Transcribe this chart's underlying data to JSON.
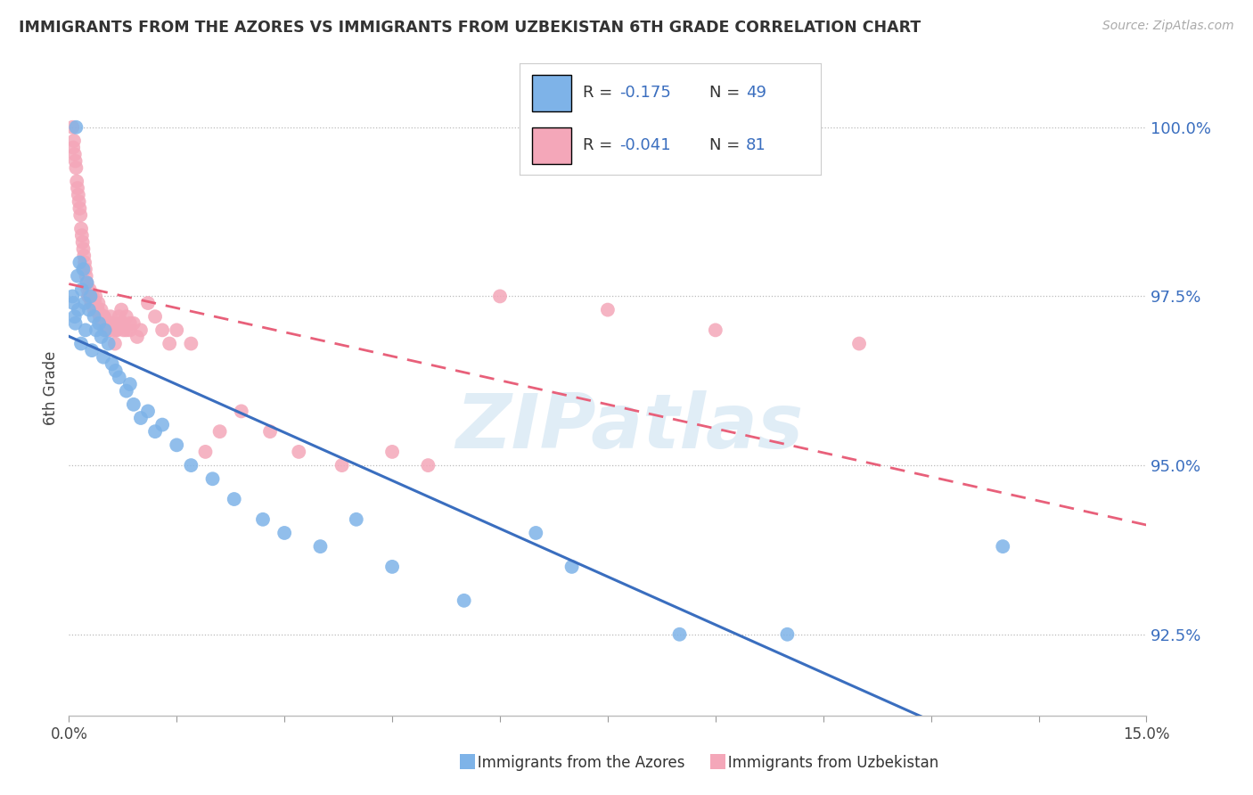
{
  "title": "IMMIGRANTS FROM THE AZORES VS IMMIGRANTS FROM UZBEKISTAN 6TH GRADE CORRELATION CHART",
  "source": "Source: ZipAtlas.com",
  "ylabel": "6th Grade",
  "yticks": [
    92.5,
    95.0,
    97.5,
    100.0
  ],
  "ytick_labels": [
    "92.5%",
    "95.0%",
    "97.5%",
    "100.0%"
  ],
  "xmin": 0.0,
  "xmax": 15.0,
  "ymin": 91.3,
  "ymax": 101.0,
  "watermark": "ZIPatlas",
  "color_azores": "#7EB3E8",
  "color_uzbekistan": "#F4A7B9",
  "trendline_azores_color": "#3A6EBF",
  "trendline_uzbekistan_color": "#E8607A",
  "legend_r1_text": "R = ",
  "legend_r1_val": "-0.175",
  "legend_n1_text": "N = ",
  "legend_n1_val": "49",
  "legend_r2_text": "R = ",
  "legend_r2_val": "-0.041",
  "legend_n2_text": "N = ",
  "legend_n2_val": "81",
  "azores_x": [
    0.05,
    0.08,
    0.1,
    0.12,
    0.15,
    0.18,
    0.2,
    0.22,
    0.25,
    0.28,
    0.3,
    0.35,
    0.38,
    0.42,
    0.45,
    0.5,
    0.55,
    0.6,
    0.7,
    0.8,
    0.9,
    1.0,
    1.1,
    1.2,
    1.3,
    1.5,
    1.7,
    2.0,
    2.3,
    2.7,
    3.0,
    3.5,
    4.0,
    4.5,
    5.5,
    6.5,
    7.0,
    8.5,
    10.0,
    13.0,
    0.06,
    0.09,
    0.13,
    0.17,
    0.23,
    0.32,
    0.48,
    0.65,
    0.85
  ],
  "azores_y": [
    97.5,
    97.2,
    100.0,
    97.8,
    98.0,
    97.6,
    97.9,
    97.4,
    97.7,
    97.3,
    97.5,
    97.2,
    97.0,
    97.1,
    96.9,
    97.0,
    96.8,
    96.5,
    96.3,
    96.1,
    95.9,
    95.7,
    95.8,
    95.5,
    95.6,
    95.3,
    95.0,
    94.8,
    94.5,
    94.2,
    94.0,
    93.8,
    94.2,
    93.5,
    93.0,
    94.0,
    93.5,
    92.5,
    92.5,
    93.8,
    97.4,
    97.1,
    97.3,
    96.8,
    97.0,
    96.7,
    96.6,
    96.4,
    96.2
  ],
  "uzbekistan_x": [
    0.05,
    0.07,
    0.09,
    0.11,
    0.13,
    0.15,
    0.17,
    0.19,
    0.21,
    0.23,
    0.25,
    0.27,
    0.29,
    0.31,
    0.33,
    0.35,
    0.37,
    0.39,
    0.41,
    0.43,
    0.45,
    0.47,
    0.49,
    0.51,
    0.53,
    0.55,
    0.58,
    0.61,
    0.64,
    0.67,
    0.7,
    0.73,
    0.76,
    0.8,
    0.85,
    0.9,
    0.95,
    1.0,
    1.1,
    1.2,
    1.3,
    1.4,
    1.5,
    1.7,
    1.9,
    2.1,
    2.4,
    2.8,
    3.2,
    3.8,
    4.5,
    5.0,
    6.0,
    7.5,
    9.0,
    11.0,
    0.06,
    0.08,
    0.1,
    0.12,
    0.14,
    0.16,
    0.18,
    0.2,
    0.22,
    0.24,
    0.26,
    0.28,
    0.32,
    0.36,
    0.4,
    0.44,
    0.48,
    0.52,
    0.56,
    0.6,
    0.65,
    0.7,
    0.75,
    0.8,
    0.85
  ],
  "uzbekistan_y": [
    100.0,
    99.8,
    99.5,
    99.2,
    99.0,
    98.8,
    98.5,
    98.3,
    98.1,
    97.9,
    97.7,
    97.5,
    97.6,
    97.4,
    97.5,
    97.3,
    97.5,
    97.3,
    97.4,
    97.2,
    97.3,
    97.1,
    97.2,
    97.0,
    97.1,
    97.0,
    97.2,
    97.0,
    96.8,
    97.0,
    97.1,
    97.3,
    97.0,
    97.2,
    97.0,
    97.1,
    96.9,
    97.0,
    97.4,
    97.2,
    97.0,
    96.8,
    97.0,
    96.8,
    95.2,
    95.5,
    95.8,
    95.5,
    95.2,
    95.0,
    95.2,
    95.0,
    97.5,
    97.3,
    97.0,
    96.8,
    99.7,
    99.6,
    99.4,
    99.1,
    98.9,
    98.7,
    98.4,
    98.2,
    98.0,
    97.8,
    97.6,
    97.5,
    97.4,
    97.4,
    97.3,
    97.2,
    97.2,
    97.1,
    97.0,
    97.1,
    97.0,
    97.2,
    97.1,
    97.0,
    97.1
  ]
}
